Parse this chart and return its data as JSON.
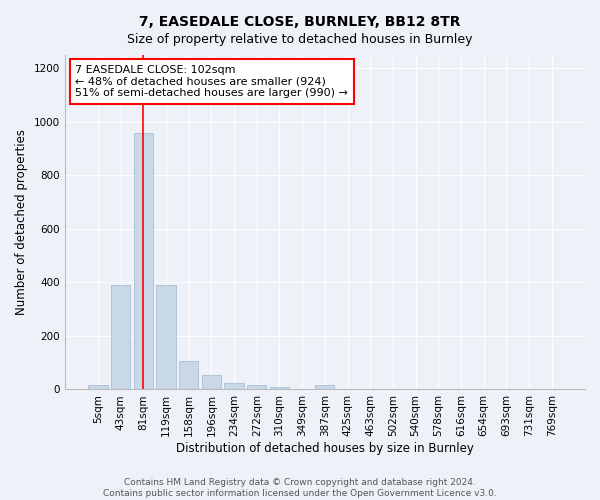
{
  "title": "7, EASEDALE CLOSE, BURNLEY, BB12 8TR",
  "subtitle": "Size of property relative to detached houses in Burnley",
  "xlabel": "Distribution of detached houses by size in Burnley",
  "ylabel": "Number of detached properties",
  "categories": [
    "5sqm",
    "43sqm",
    "81sqm",
    "119sqm",
    "158sqm",
    "196sqm",
    "234sqm",
    "272sqm",
    "310sqm",
    "349sqm",
    "387sqm",
    "425sqm",
    "463sqm",
    "502sqm",
    "540sqm",
    "578sqm",
    "616sqm",
    "654sqm",
    "693sqm",
    "731sqm",
    "769sqm"
  ],
  "bar_values": [
    15,
    390,
    960,
    390,
    105,
    55,
    25,
    15,
    10,
    0,
    15,
    0,
    0,
    0,
    0,
    0,
    0,
    0,
    0,
    0,
    0
  ],
  "bar_color": "#c8d8e8",
  "bar_edge_color": "#a0b8cc",
  "red_line_index": 2,
  "annotation_text": "7 EASEDALE CLOSE: 102sqm\n← 48% of detached houses are smaller (924)\n51% of semi-detached houses are larger (990) →",
  "annotation_box_color": "white",
  "annotation_box_edge": "red",
  "ylim": [
    0,
    1250
  ],
  "yticks": [
    0,
    200,
    400,
    600,
    800,
    1000,
    1200
  ],
  "footer_text": "Contains HM Land Registry data © Crown copyright and database right 2024.\nContains public sector information licensed under the Open Government Licence v3.0.",
  "background_color": "#eef2f8",
  "plot_background": "#eef2f8",
  "title_fontsize": 10,
  "subtitle_fontsize": 9,
  "axis_label_fontsize": 8.5,
  "tick_fontsize": 7.5,
  "annotation_fontsize": 8,
  "footer_fontsize": 6.5
}
